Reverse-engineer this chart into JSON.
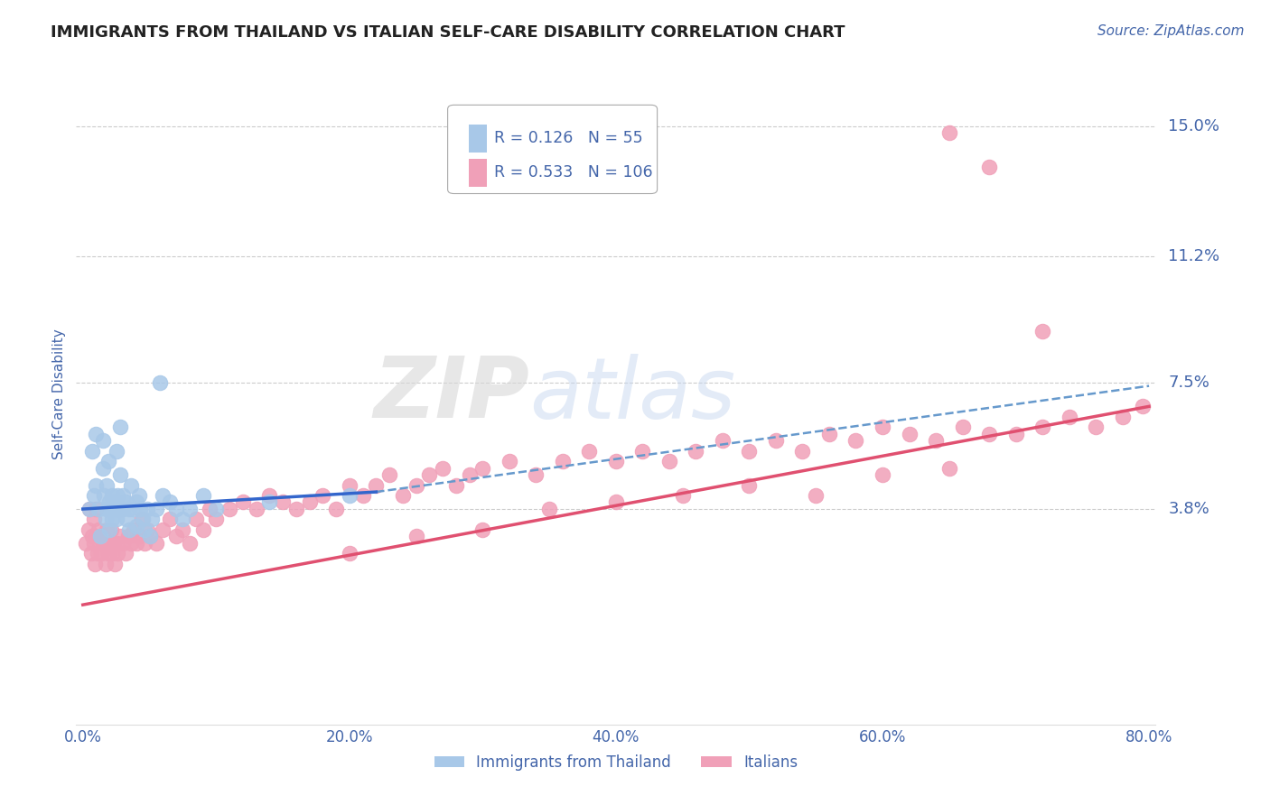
{
  "title": "IMMIGRANTS FROM THAILAND VS ITALIAN SELF-CARE DISABILITY CORRELATION CHART",
  "source": "Source: ZipAtlas.com",
  "ylabel": "Self-Care Disability",
  "xlim": [
    -0.005,
    0.805
  ],
  "ylim": [
    -0.025,
    0.168
  ],
  "yticks": [
    0.038,
    0.075,
    0.112,
    0.15
  ],
  "ytick_labels": [
    "3.8%",
    "7.5%",
    "11.2%",
    "15.0%"
  ],
  "xticks": [
    0.0,
    0.2,
    0.4,
    0.6,
    0.8
  ],
  "xtick_labels": [
    "0.0%",
    "20.0%",
    "40.0%",
    "60.0%",
    "80.0%"
  ],
  "background_color": "#ffffff",
  "legend_R1": "0.126",
  "legend_N1": "55",
  "legend_R2": "0.533",
  "legend_N2": "106",
  "blue_color": "#a8c8e8",
  "pink_color": "#f0a0b8",
  "trend_blue_solid_color": "#3366cc",
  "trend_blue_dash_color": "#6699cc",
  "trend_pink_color": "#e05070",
  "title_color": "#222222",
  "label_color": "#4466aa",
  "blue_scatter_x": [
    0.005,
    0.007,
    0.008,
    0.01,
    0.01,
    0.012,
    0.013,
    0.015,
    0.015,
    0.016,
    0.017,
    0.018,
    0.018,
    0.019,
    0.02,
    0.02,
    0.021,
    0.022,
    0.022,
    0.023,
    0.024,
    0.025,
    0.025,
    0.026,
    0.027,
    0.028,
    0.028,
    0.03,
    0.03,
    0.032,
    0.033,
    0.035,
    0.035,
    0.036,
    0.038,
    0.04,
    0.04,
    0.042,
    0.043,
    0.045,
    0.046,
    0.048,
    0.05,
    0.052,
    0.055,
    0.058,
    0.06,
    0.065,
    0.07,
    0.075,
    0.08,
    0.09,
    0.1,
    0.14,
    0.2
  ],
  "blue_scatter_y": [
    0.038,
    0.055,
    0.042,
    0.06,
    0.045,
    0.038,
    0.03,
    0.05,
    0.058,
    0.042,
    0.035,
    0.038,
    0.045,
    0.052,
    0.04,
    0.032,
    0.038,
    0.042,
    0.035,
    0.04,
    0.038,
    0.035,
    0.055,
    0.042,
    0.038,
    0.062,
    0.048,
    0.038,
    0.042,
    0.04,
    0.035,
    0.038,
    0.032,
    0.045,
    0.038,
    0.04,
    0.033,
    0.042,
    0.038,
    0.035,
    0.032,
    0.038,
    0.03,
    0.035,
    0.038,
    0.075,
    0.042,
    0.04,
    0.038,
    0.035,
    0.038,
    0.042,
    0.038,
    0.04,
    0.042
  ],
  "pink_scatter_x": [
    0.002,
    0.004,
    0.005,
    0.006,
    0.007,
    0.008,
    0.008,
    0.009,
    0.01,
    0.01,
    0.011,
    0.012,
    0.013,
    0.014,
    0.015,
    0.016,
    0.017,
    0.018,
    0.019,
    0.02,
    0.021,
    0.022,
    0.023,
    0.024,
    0.025,
    0.026,
    0.028,
    0.03,
    0.032,
    0.034,
    0.036,
    0.038,
    0.04,
    0.042,
    0.044,
    0.046,
    0.048,
    0.05,
    0.055,
    0.06,
    0.065,
    0.07,
    0.075,
    0.08,
    0.085,
    0.09,
    0.095,
    0.1,
    0.11,
    0.12,
    0.13,
    0.14,
    0.15,
    0.16,
    0.17,
    0.18,
    0.19,
    0.2,
    0.21,
    0.22,
    0.23,
    0.24,
    0.25,
    0.26,
    0.27,
    0.28,
    0.29,
    0.3,
    0.32,
    0.34,
    0.36,
    0.38,
    0.4,
    0.42,
    0.44,
    0.46,
    0.48,
    0.5,
    0.52,
    0.54,
    0.56,
    0.58,
    0.6,
    0.62,
    0.64,
    0.66,
    0.68,
    0.7,
    0.72,
    0.74,
    0.76,
    0.78,
    0.795,
    0.65,
    0.68,
    0.72,
    0.4,
    0.35,
    0.3,
    0.25,
    0.2,
    0.45,
    0.5,
    0.55,
    0.6,
    0.65
  ],
  "pink_scatter_y": [
    0.028,
    0.032,
    0.038,
    0.025,
    0.03,
    0.035,
    0.028,
    0.022,
    0.038,
    0.03,
    0.025,
    0.032,
    0.028,
    0.025,
    0.03,
    0.028,
    0.022,
    0.032,
    0.025,
    0.028,
    0.032,
    0.025,
    0.028,
    0.022,
    0.028,
    0.025,
    0.03,
    0.028,
    0.025,
    0.03,
    0.028,
    0.032,
    0.028,
    0.03,
    0.035,
    0.028,
    0.032,
    0.03,
    0.028,
    0.032,
    0.035,
    0.03,
    0.032,
    0.028,
    0.035,
    0.032,
    0.038,
    0.035,
    0.038,
    0.04,
    0.038,
    0.042,
    0.04,
    0.038,
    0.04,
    0.042,
    0.038,
    0.045,
    0.042,
    0.045,
    0.048,
    0.042,
    0.045,
    0.048,
    0.05,
    0.045,
    0.048,
    0.05,
    0.052,
    0.048,
    0.052,
    0.055,
    0.052,
    0.055,
    0.052,
    0.055,
    0.058,
    0.055,
    0.058,
    0.055,
    0.06,
    0.058,
    0.062,
    0.06,
    0.058,
    0.062,
    0.06,
    0.06,
    0.062,
    0.065,
    0.062,
    0.065,
    0.068,
    0.148,
    0.138,
    0.09,
    0.04,
    0.038,
    0.032,
    0.03,
    0.025,
    0.042,
    0.045,
    0.042,
    0.048,
    0.05
  ],
  "trend_blue_x_start": 0.0,
  "trend_blue_x_solid_end": 0.22,
  "trend_blue_x_dash_end": 0.8,
  "trend_blue_y_start": 0.038,
  "trend_blue_y_solid_end": 0.043,
  "trend_blue_y_dash_end": 0.074,
  "trend_pink_x_start": 0.0,
  "trend_pink_x_end": 0.8,
  "trend_pink_y_start": 0.01,
  "trend_pink_y_end": 0.068
}
